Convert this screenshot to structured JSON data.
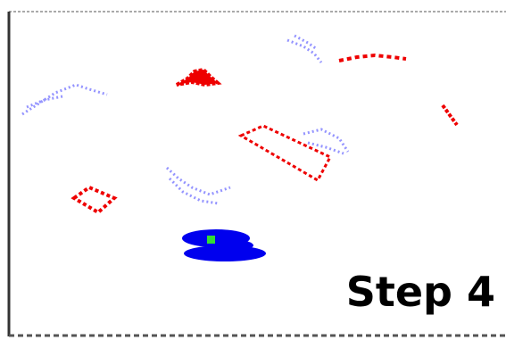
{
  "label": "Step 4"
}
